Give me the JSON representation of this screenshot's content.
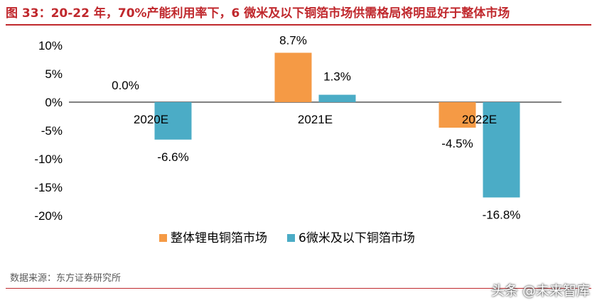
{
  "header": {
    "title": "图 33：20-22 年，70%产能利用率下，6 微米及以下铜箔市场供需格局将明显好于整体市场"
  },
  "footer": {
    "source": "数据来源：东方证券研究所",
    "watermark": "头条 @未来智库"
  },
  "colors": {
    "title": "#c0282d",
    "series_1": "#f59a45",
    "series_2": "#4bacc6",
    "axis": "#000000"
  },
  "chart_data": {
    "type": "bar",
    "categories": [
      "2020E",
      "2021E",
      "2022E"
    ],
    "series": [
      {
        "name": "整体锂电铜箔市场",
        "values": [
          0.0,
          8.7,
          -4.5
        ],
        "labels": [
          "0.0%",
          "8.7%",
          "-4.5%"
        ]
      },
      {
        "name": "6微米及以下铜箔市场",
        "values": [
          -6.6,
          1.3,
          -16.8
        ],
        "labels": [
          "-6.6%",
          "1.3%",
          "-16.8%"
        ]
      }
    ],
    "yticks": [
      "10%",
      "5%",
      "0%",
      "-5%",
      "-10%",
      "-15%",
      "-20%"
    ],
    "ylim": [
      -20,
      10
    ],
    "legend": "bottom"
  }
}
